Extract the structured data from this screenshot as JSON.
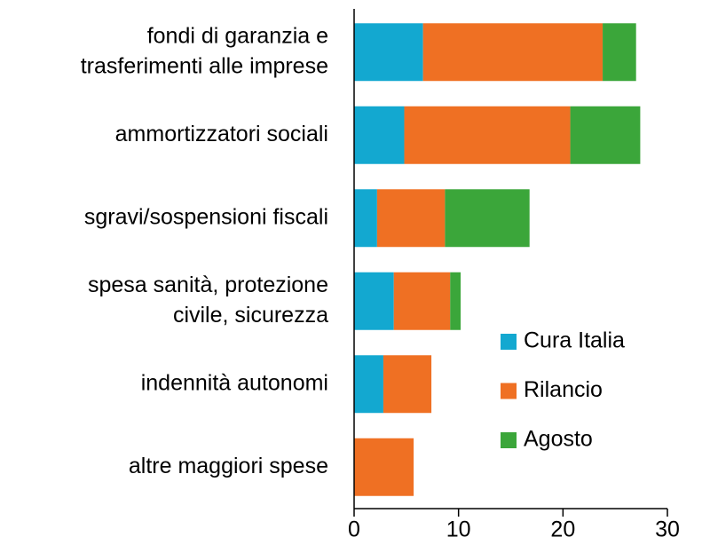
{
  "chart_data": {
    "type": "stacked-barh",
    "categories": [
      [
        "fondi di garanzia e",
        "trasferimenti alle imprese"
      ],
      [
        "ammortizzatori sociali"
      ],
      [
        "sgravi/sospensioni fiscali"
      ],
      [
        "spesa sanità, protezione",
        "civile, sicurezza"
      ],
      [
        "indennità autonomi"
      ],
      [
        "altre maggiori spese"
      ]
    ],
    "series": [
      {
        "name": "Cura Italia",
        "color": "#13a8d0",
        "values": [
          6.6,
          4.8,
          2.2,
          3.8,
          2.8,
          0
        ]
      },
      {
        "name": "Rilancio",
        "color": "#ef7023",
        "values": [
          17.2,
          15.9,
          6.5,
          5.4,
          4.6,
          5.7
        ]
      },
      {
        "name": "Agosto",
        "color": "#3ba63a",
        "values": [
          3.2,
          6.7,
          8.1,
          1.0,
          0,
          0
        ]
      }
    ],
    "xlim": [
      0,
      30
    ],
    "xticks": [
      0,
      10,
      20,
      30
    ],
    "legend": "lower right"
  }
}
